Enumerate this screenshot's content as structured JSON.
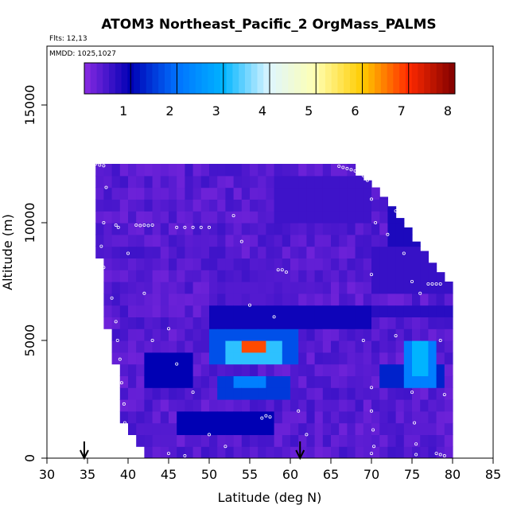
{
  "chart_data": {
    "type": "heatmap",
    "title": "ATOM3 Northeast_Pacific_2 OrgMass_PALMS",
    "flights_label": "Flts: 12,13",
    "dates_label": "MMDD: 1025,1027",
    "xlabel": "Latitude (deg N)",
    "ylabel": "Altitude (m)",
    "xlim": [
      30,
      85
    ],
    "ylim": [
      0,
      17500
    ],
    "xticks": [
      30,
      35,
      40,
      45,
      50,
      55,
      60,
      65,
      70,
      75,
      80,
      85
    ],
    "yticks": [
      0,
      5000,
      10000,
      15000
    ],
    "colorbar": {
      "range": [
        0,
        8
      ],
      "ticks": [
        1,
        2,
        3,
        4,
        5,
        6,
        7,
        8
      ],
      "colors": [
        "#8a2be2",
        "#0000b4",
        "#0072ff",
        "#00b4ff",
        "#dff6ff",
        "#ffffb0",
        "#ffcc00",
        "#ff2a00",
        "#800000"
      ]
    },
    "curtain": {
      "lat_start": 36,
      "lat_step": 1,
      "alt_step": 500,
      "top_alt": [
        12500,
        12500,
        12500,
        12500,
        12500,
        12500,
        12500,
        12500,
        12500,
        12500,
        12500,
        12500,
        12500,
        12500,
        12500,
        12500,
        12500,
        12500,
        12500,
        12500,
        12500,
        12500,
        12500,
        12500,
        12500,
        12500,
        12500,
        12500,
        12500,
        12500,
        12500,
        12500,
        12000,
        11800,
        11500,
        11100,
        10700,
        10200,
        9800,
        9200,
        8800,
        8300,
        7900,
        7500
      ],
      "bottom_alt": [
        8500,
        5500,
        4000,
        1500,
        800,
        300,
        0,
        0,
        0,
        0,
        0,
        0,
        0,
        0,
        0,
        0,
        0,
        0,
        0,
        0,
        0,
        0,
        0,
        0,
        0,
        0,
        0,
        0,
        0,
        0,
        0,
        0,
        0,
        0,
        0,
        0,
        0,
        0,
        0,
        0,
        0,
        0,
        0,
        0
      ],
      "features": [
        {
          "lat": [
            54,
            57
          ],
          "alt": [
            4400,
            5000
          ],
          "value": 6.8
        },
        {
          "lat": [
            52,
            59
          ],
          "alt": [
            4200,
            5200
          ],
          "value": 3.2
        },
        {
          "lat": [
            50.5,
            60.5
          ],
          "alt": [
            4000,
            5500
          ],
          "value": 1.7
        },
        {
          "lat": [
            51.5,
            60
          ],
          "alt": [
            2700,
            3500
          ],
          "value": 1.5
        },
        {
          "lat": [
            53.5,
            57
          ],
          "alt": [
            2900,
            3300
          ],
          "value": 2.2
        },
        {
          "lat": [
            74,
            78
          ],
          "alt": [
            3000,
            5200
          ],
          "value": 2.2
        },
        {
          "lat": [
            75,
            77
          ],
          "alt": [
            3400,
            4800
          ],
          "value": 3.0
        },
        {
          "lat": [
            71,
            79
          ],
          "alt": [
            3000,
            4000
          ],
          "value": 1.3
        },
        {
          "lat": [
            42,
            48
          ],
          "alt": [
            3000,
            4500
          ],
          "value": 1.0
        },
        {
          "lat": [
            46,
            58
          ],
          "alt": [
            1000,
            1800
          ],
          "value": 1.0
        },
        {
          "lat": [
            50,
            70
          ],
          "alt": [
            5600,
            6300
          ],
          "value": 0.9
        },
        {
          "lat": [
            63,
            80
          ],
          "alt": [
            5800,
            6500
          ],
          "value": 0.7
        },
        {
          "lat": [
            70,
            80
          ],
          "alt": [
            7000,
            9000
          ],
          "value": 0.6
        },
        {
          "lat": [
            72,
            80
          ],
          "alt": [
            9000,
            11000
          ],
          "value": 0.8
        },
        {
          "lat": [
            58,
            70
          ],
          "alt": [
            10000,
            12000
          ],
          "value": 0.55
        },
        {
          "lat": [
            50,
            60
          ],
          "alt": [
            6500,
            8500
          ],
          "value": 0.4
        }
      ],
      "background_value": 0.2
    },
    "flight_points": [
      [
        36.0,
        12500
      ],
      [
        36.5,
        12450
      ],
      [
        37.0,
        12420
      ],
      [
        37.3,
        11500
      ],
      [
        37.0,
        10000
      ],
      [
        36.7,
        9000
      ],
      [
        37.0,
        8100
      ],
      [
        38.0,
        6800
      ],
      [
        38.5,
        5800
      ],
      [
        38.7,
        5000
      ],
      [
        39.0,
        4200
      ],
      [
        39.2,
        3200
      ],
      [
        39.5,
        2300
      ],
      [
        39.6,
        1500
      ],
      [
        40.0,
        800
      ],
      [
        40.2,
        500
      ],
      [
        40.5,
        200
      ],
      [
        41.0,
        100
      ],
      [
        38.5,
        9900
      ],
      [
        38.8,
        9800
      ],
      [
        41.0,
        9900
      ],
      [
        41.5,
        9880
      ],
      [
        42.0,
        9900
      ],
      [
        42.5,
        9880
      ],
      [
        43.0,
        9900
      ],
      [
        46.0,
        9800
      ],
      [
        47.0,
        9800
      ],
      [
        48.0,
        9800
      ],
      [
        49.0,
        9800
      ],
      [
        50.0,
        9800
      ],
      [
        40.0,
        8700
      ],
      [
        42.0,
        7000
      ],
      [
        43.0,
        5000
      ],
      [
        45.0,
        5500
      ],
      [
        46.0,
        4000
      ],
      [
        48.0,
        2800
      ],
      [
        50.0,
        1000
      ],
      [
        52.0,
        500
      ],
      [
        45.0,
        200
      ],
      [
        47.0,
        100
      ],
      [
        53.0,
        10300
      ],
      [
        54.0,
        9200
      ],
      [
        55.0,
        6500
      ],
      [
        58.0,
        6000
      ],
      [
        58.5,
        8000
      ],
      [
        59.0,
        8000
      ],
      [
        59.5,
        7900
      ],
      [
        56.5,
        1700
      ],
      [
        57.0,
        1800
      ],
      [
        57.5,
        1750
      ],
      [
        61.0,
        2000
      ],
      [
        62.0,
        1000
      ],
      [
        66.0,
        12400
      ],
      [
        66.5,
        12350
      ],
      [
        67.0,
        12300
      ],
      [
        67.5,
        12250
      ],
      [
        68.0,
        12200
      ],
      [
        68.5,
        12150
      ],
      [
        69.0,
        12000
      ],
      [
        69.5,
        11800
      ],
      [
        70.0,
        11000
      ],
      [
        70.5,
        10000
      ],
      [
        70.0,
        7800
      ],
      [
        69.0,
        5000
      ],
      [
        70.0,
        3000
      ],
      [
        70.0,
        2000
      ],
      [
        70.2,
        1200
      ],
      [
        70.3,
        500
      ],
      [
        70.0,
        200
      ],
      [
        72.0,
        9500
      ],
      [
        73.0,
        10500
      ],
      [
        74.0,
        8700
      ],
      [
        75.0,
        7500
      ],
      [
        76.0,
        7000
      ],
      [
        77.0,
        7400
      ],
      [
        77.5,
        7400
      ],
      [
        78.0,
        7400
      ],
      [
        78.5,
        7400
      ],
      [
        75.0,
        2800
      ],
      [
        75.3,
        1500
      ],
      [
        75.5,
        600
      ],
      [
        75.5,
        150
      ],
      [
        78.0,
        200
      ],
      [
        78.5,
        150
      ],
      [
        79.0,
        100
      ],
      [
        73.0,
        5200
      ],
      [
        78.5,
        5000
      ],
      [
        79.0,
        2700
      ]
    ],
    "annotations": [
      {
        "type": "arrow",
        "lat": 34.6,
        "label": ""
      },
      {
        "type": "arrow",
        "lat": 61.2,
        "label": ""
      }
    ]
  }
}
